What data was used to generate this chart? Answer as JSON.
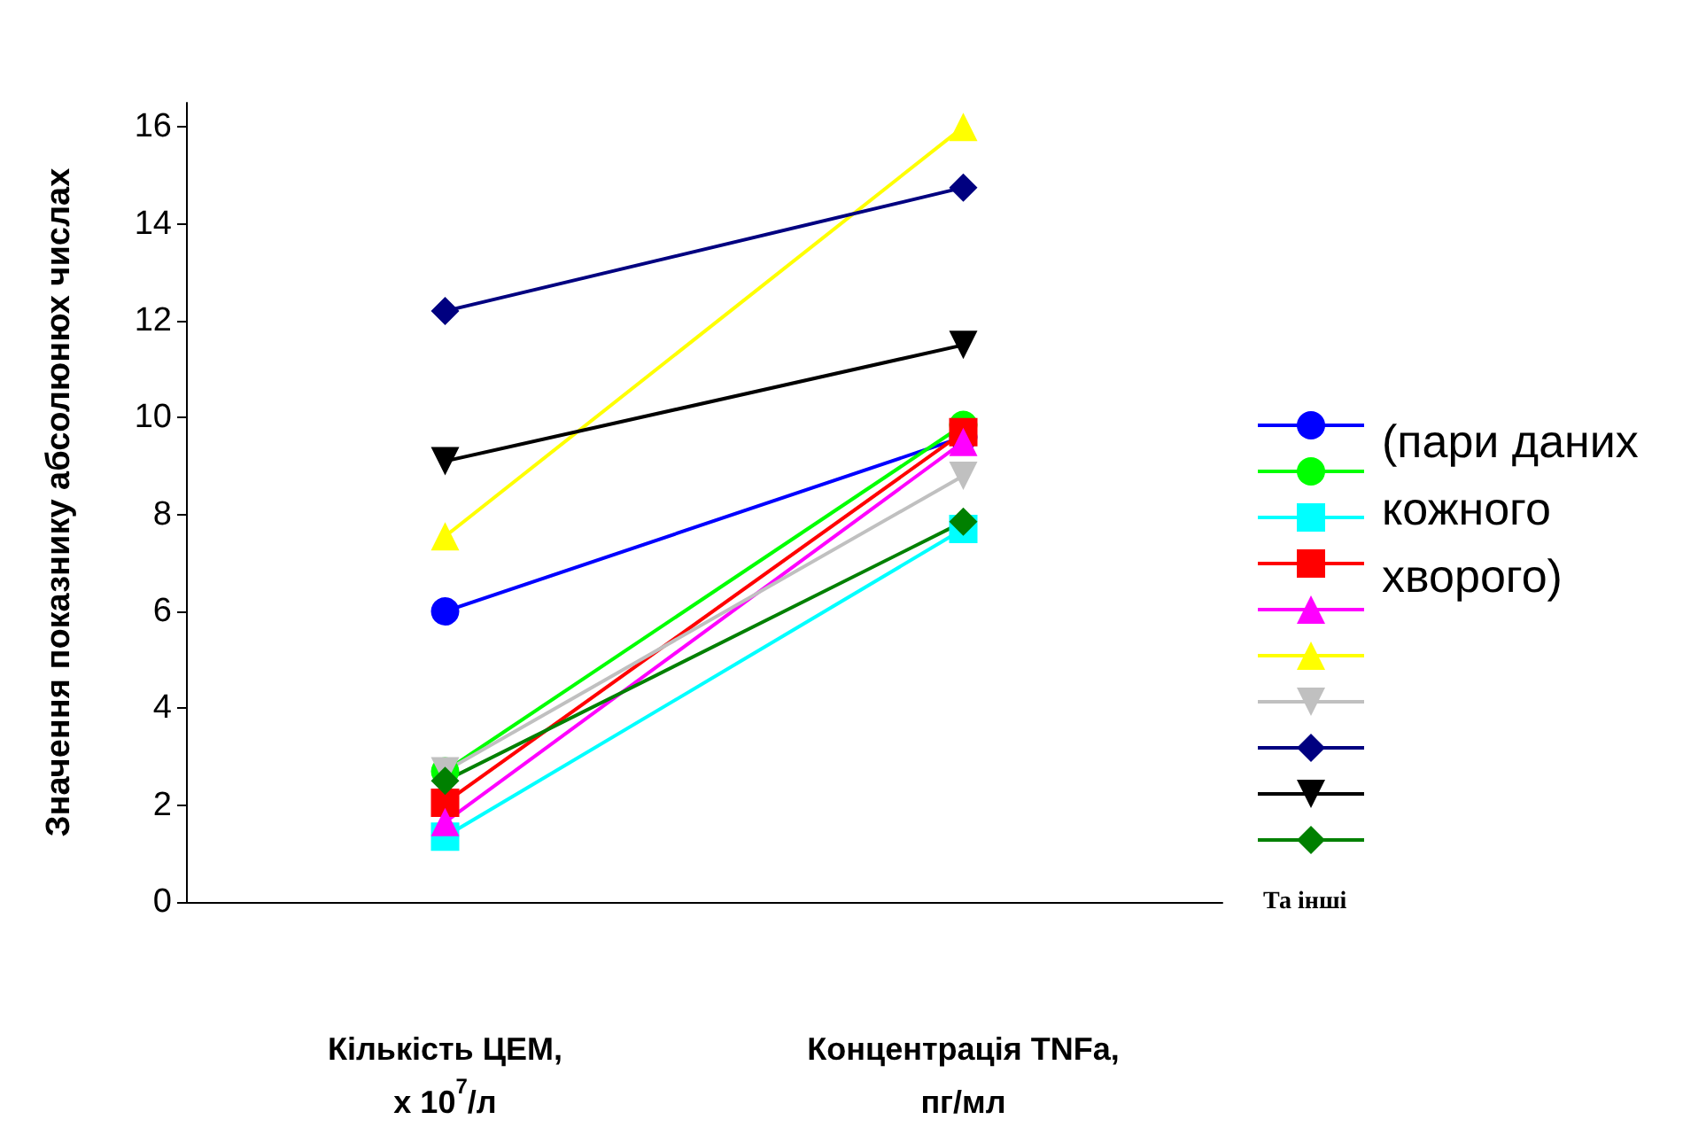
{
  "chart_data": {
    "type": "line",
    "ylabel": "Значення показнику абсолюнюх числах",
    "categories": [
      "Кількість ЦЕМ,\nx 10$^{7}$/л",
      "Концентрація TNFa,\nпг/мл"
    ],
    "ylim": [
      0,
      16.5
    ],
    "yticks": [
      0,
      2,
      4,
      6,
      8,
      10,
      12,
      14,
      16
    ],
    "grid": false,
    "legend": false,
    "series": [
      {
        "color": "#0000ff",
        "marker": "circle",
        "values": [
          6.0,
          9.6
        ]
      },
      {
        "color": "#00ff00",
        "marker": "circle",
        "values": [
          2.7,
          9.85
        ]
      },
      {
        "color": "#00ffff",
        "marker": "square",
        "values": [
          1.35,
          7.7
        ]
      },
      {
        "color": "#ff0000",
        "marker": "square",
        "values": [
          2.05,
          9.7
        ]
      },
      {
        "color": "#ff00ff",
        "marker": "triangle",
        "values": [
          1.65,
          9.5
        ]
      },
      {
        "color": "#ffff00",
        "marker": "triangle",
        "values": [
          7.55,
          16.0
        ]
      },
      {
        "color": "#c0c0c0",
        "marker": "triangle-down",
        "values": [
          2.7,
          8.8
        ]
      },
      {
        "color": "#000080",
        "marker": "diamond",
        "values": [
          12.2,
          14.75
        ]
      },
      {
        "color": "#000000",
        "marker": "triangle-down",
        "values": [
          9.1,
          11.5
        ]
      },
      {
        "color": "#008000",
        "marker": "diamond",
        "values": [
          2.5,
          7.85
        ]
      }
    ],
    "annotations": [
      "(пари даних\nкожного\nхворого)",
      "Та інші"
    ]
  }
}
